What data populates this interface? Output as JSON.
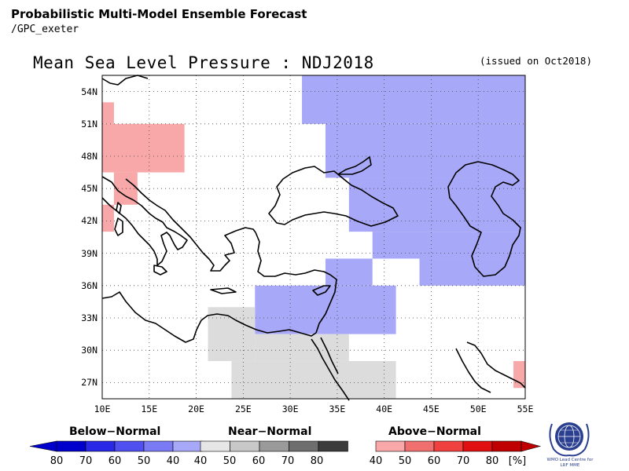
{
  "header": {
    "title": "Probabilistic Multi-Model Ensemble Forecast",
    "subtitle": "/GPC_exeter"
  },
  "map": {
    "title": "Mean Sea Level Pressure : NDJ2018",
    "issued": "(issued on Oct2018)",
    "lat_labels": [
      "54N",
      "51N",
      "48N",
      "45N",
      "42N",
      "39N",
      "36N",
      "33N",
      "30N",
      "27N"
    ],
    "lon_labels": [
      "10E",
      "15E",
      "20E",
      "25E",
      "30E",
      "35E",
      "40E",
      "45E",
      "50E",
      "55E"
    ],
    "extent": {
      "lon": [
        10,
        55
      ],
      "lat": [
        25.5,
        55.5
      ]
    },
    "grid": "dotted 5 degrees lon, 3 degrees lat",
    "regions": [
      {
        "category": "above",
        "lon": [
          10,
          11.25
        ],
        "lat": [
          51.0,
          53.0
        ]
      },
      {
        "category": "above",
        "lon": [
          10,
          18.75
        ],
        "lat": [
          46.5,
          51.0
        ]
      },
      {
        "category": "above",
        "lon": [
          11.25,
          13.75
        ],
        "lat": [
          43.5,
          46.5
        ]
      },
      {
        "category": "above",
        "lon": [
          10,
          11.25
        ],
        "lat": [
          41.0,
          43.5
        ]
      },
      {
        "category": "above",
        "lon": [
          53.75,
          55
        ],
        "lat": [
          26.5,
          29.0
        ]
      },
      {
        "category": "below",
        "lon": [
          31.25,
          55
        ],
        "lat": [
          51.0,
          55.5
        ]
      },
      {
        "category": "below",
        "lon": [
          33.75,
          55
        ],
        "lat": [
          46.0,
          51.0
        ]
      },
      {
        "category": "below",
        "lon": [
          36.25,
          55
        ],
        "lat": [
          41.0,
          46.0
        ]
      },
      {
        "category": "below",
        "lon": [
          38.75,
          55
        ],
        "lat": [
          38.5,
          41.0
        ]
      },
      {
        "category": "below",
        "lon": [
          43.75,
          55
        ],
        "lat": [
          36.0,
          38.5
        ]
      },
      {
        "category": "below",
        "lon": [
          33.75,
          38.75
        ],
        "lat": [
          36.0,
          38.5
        ]
      },
      {
        "category": "below",
        "lon": [
          26.25,
          41.25
        ],
        "lat": [
          31.5,
          36.0
        ]
      },
      {
        "category": "near",
        "lon": [
          21.25,
          26.25
        ],
        "lat": [
          29.0,
          34.0
        ]
      },
      {
        "category": "near",
        "lon": [
          26.25,
          36.25
        ],
        "lat": [
          29.0,
          31.5
        ]
      },
      {
        "category": "near",
        "lon": [
          23.75,
          41.25
        ],
        "lat": [
          25.5,
          29.0
        ]
      }
    ]
  },
  "legend": {
    "below": {
      "title": "Below−Normal",
      "labels": [
        "80",
        "70",
        "60",
        "50",
        "40"
      ],
      "colors": [
        "#0000cc",
        "#2828e6",
        "#5050f0",
        "#7a7af5",
        "#a8a8f8"
      ]
    },
    "near": {
      "title": "Near−Normal",
      "labels": [
        "40",
        "50",
        "60",
        "70",
        "80"
      ],
      "colors": [
        "#e6e6e6",
        "#c8c8c8",
        "#9a9a9a",
        "#6e6e6e",
        "#3c3c3c"
      ]
    },
    "above": {
      "title": "Above−Normal",
      "labels": [
        "40",
        "50",
        "60",
        "70",
        "80"
      ],
      "colors": [
        "#f8a8a8",
        "#f07070",
        "#f04040",
        "#e01010",
        "#c00000"
      ]
    },
    "unit": "[%]"
  },
  "logo": {
    "text_line1": "WMO Lead Centre for",
    "text_line2": "LRF MME"
  },
  "colors": {
    "above": "#f8a8a8",
    "below": "#a8a8f8",
    "near": "#dcdcdc"
  }
}
